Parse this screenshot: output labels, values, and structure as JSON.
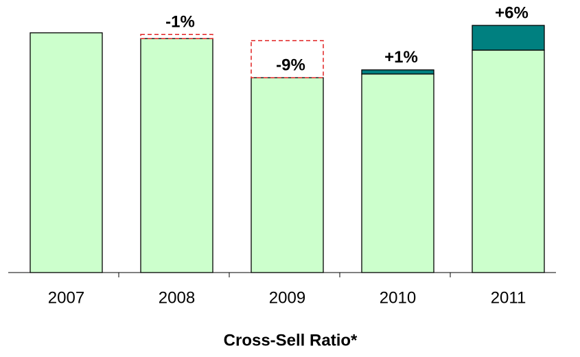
{
  "chart_data": {
    "type": "bar",
    "title": "Cross-Sell Ratio*",
    "categories": [
      "2007",
      "2008",
      "2009",
      "2010",
      "2011"
    ],
    "series": [
      {
        "color": "#ccffcc",
        "values": [
          58.2,
          56.8,
          47.3,
          48.2,
          54
        ]
      },
      {
        "color": "#008080",
        "negative_color": "#e02020",
        "values": [
          null,
          -1,
          -9,
          1,
          6
        ],
        "value_labels": [
          null,
          "-1%",
          "-9%",
          "+1%",
          "+6%"
        ]
      }
    ],
    "ylim": [
      0,
      60
    ]
  }
}
